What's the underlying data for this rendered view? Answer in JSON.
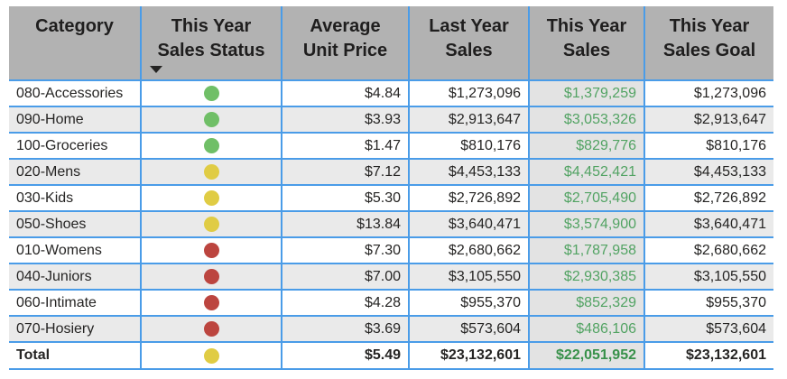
{
  "table": {
    "columns": [
      {
        "id": "category",
        "lines": [
          "Category"
        ]
      },
      {
        "id": "this_year_sales_status",
        "lines": [
          "This Year",
          "Sales Status"
        ],
        "sort": "descending"
      },
      {
        "id": "average_unit_price",
        "lines": [
          "Average",
          "Unit Price"
        ]
      },
      {
        "id": "last_year_sales",
        "lines": [
          "Last Year",
          "Sales"
        ]
      },
      {
        "id": "this_year_sales",
        "lines": [
          "This Year",
          "Sales"
        ]
      },
      {
        "id": "this_year_sales_goal",
        "lines": [
          "This Year",
          "Sales Goal"
        ]
      }
    ],
    "rows": [
      {
        "category": "080-Accessories",
        "status": "green",
        "avg_unit_price": "$4.84",
        "last_year_sales": "$1,273,096",
        "this_year_sales": "$1,379,259",
        "this_year_sales_goal": "$1,273,096"
      },
      {
        "category": "090-Home",
        "status": "green",
        "avg_unit_price": "$3.93",
        "last_year_sales": "$2,913,647",
        "this_year_sales": "$3,053,326",
        "this_year_sales_goal": "$2,913,647"
      },
      {
        "category": "100-Groceries",
        "status": "green",
        "avg_unit_price": "$1.47",
        "last_year_sales": "$810,176",
        "this_year_sales": "$829,776",
        "this_year_sales_goal": "$810,176"
      },
      {
        "category": "020-Mens",
        "status": "yellow",
        "avg_unit_price": "$7.12",
        "last_year_sales": "$4,453,133",
        "this_year_sales": "$4,452,421",
        "this_year_sales_goal": "$4,453,133"
      },
      {
        "category": "030-Kids",
        "status": "yellow",
        "avg_unit_price": "$5.30",
        "last_year_sales": "$2,726,892",
        "this_year_sales": "$2,705,490",
        "this_year_sales_goal": "$2,726,892"
      },
      {
        "category": "050-Shoes",
        "status": "yellow",
        "avg_unit_price": "$13.84",
        "last_year_sales": "$3,640,471",
        "this_year_sales": "$3,574,900",
        "this_year_sales_goal": "$3,640,471"
      },
      {
        "category": "010-Womens",
        "status": "red",
        "avg_unit_price": "$7.30",
        "last_year_sales": "$2,680,662",
        "this_year_sales": "$1,787,958",
        "this_year_sales_goal": "$2,680,662"
      },
      {
        "category": "040-Juniors",
        "status": "red",
        "avg_unit_price": "$7.00",
        "last_year_sales": "$3,105,550",
        "this_year_sales": "$2,930,385",
        "this_year_sales_goal": "$3,105,550"
      },
      {
        "category": "060-Intimate",
        "status": "red",
        "avg_unit_price": "$4.28",
        "last_year_sales": "$955,370",
        "this_year_sales": "$852,329",
        "this_year_sales_goal": "$955,370"
      },
      {
        "category": "070-Hosiery",
        "status": "red",
        "avg_unit_price": "$3.69",
        "last_year_sales": "$573,604",
        "this_year_sales": "$486,106",
        "this_year_sales_goal": "$573,604"
      }
    ],
    "total": {
      "label": "Total",
      "status": "yellow",
      "avg_unit_price": "$5.49",
      "last_year_sales": "$23,132,601",
      "this_year_sales": "$22,051,952",
      "this_year_sales_goal": "$23,132,601"
    }
  },
  "colors": {
    "header_bg": "#b2b2b2",
    "grid_border_blue": "#4a9ce8",
    "alt_row_bg": "#eaeaea",
    "this_year_sales_col_bg": "#e3e3e3",
    "this_year_sales_text_green": "#52a363",
    "total_green": "#38914a",
    "dots": {
      "green": "#70bf67",
      "yellow": "#e0cc44",
      "red": "#bc453f"
    }
  },
  "chart_data": {
    "type": "table",
    "title": "Sales by Category with This Year Sales Status KPI",
    "columns": [
      "Category",
      "This Year Sales Status",
      "Average Unit Price",
      "Last Year Sales",
      "This Year Sales",
      "This Year Sales Goal"
    ],
    "rows": [
      [
        "080-Accessories",
        "green",
        "$4.84",
        "$1,273,096",
        "$1,379,259",
        "$1,273,096"
      ],
      [
        "090-Home",
        "green",
        "$3.93",
        "$2,913,647",
        "$3,053,326",
        "$2,913,647"
      ],
      [
        "100-Groceries",
        "green",
        "$1.47",
        "$810,176",
        "$829,776",
        "$810,176"
      ],
      [
        "020-Mens",
        "yellow",
        "$7.12",
        "$4,453,133",
        "$4,452,421",
        "$4,453,133"
      ],
      [
        "030-Kids",
        "yellow",
        "$5.30",
        "$2,726,892",
        "$2,705,490",
        "$2,726,892"
      ],
      [
        "050-Shoes",
        "yellow",
        "$13.84",
        "$3,640,471",
        "$3,574,900",
        "$3,640,471"
      ],
      [
        "010-Womens",
        "red",
        "$7.30",
        "$2,680,662",
        "$1,787,958",
        "$2,680,662"
      ],
      [
        "040-Juniors",
        "red",
        "$7.00",
        "$3,105,550",
        "$2,930,385",
        "$3,105,550"
      ],
      [
        "060-Intimate",
        "red",
        "$4.28",
        "$955,370",
        "$852,329",
        "$955,370"
      ],
      [
        "070-Hosiery",
        "red",
        "$3.69",
        "$573,604",
        "$486,106",
        "$573,604"
      ]
    ],
    "total_row": [
      "Total",
      "yellow",
      "$5.49",
      "$23,132,601",
      "$22,051,952",
      "$23,132,601"
    ],
    "sort": {
      "column": "This Year Sales Status",
      "direction": "descending"
    },
    "layout": {
      "grid": "on",
      "header_position": "top",
      "striped_rows": true
    }
  }
}
